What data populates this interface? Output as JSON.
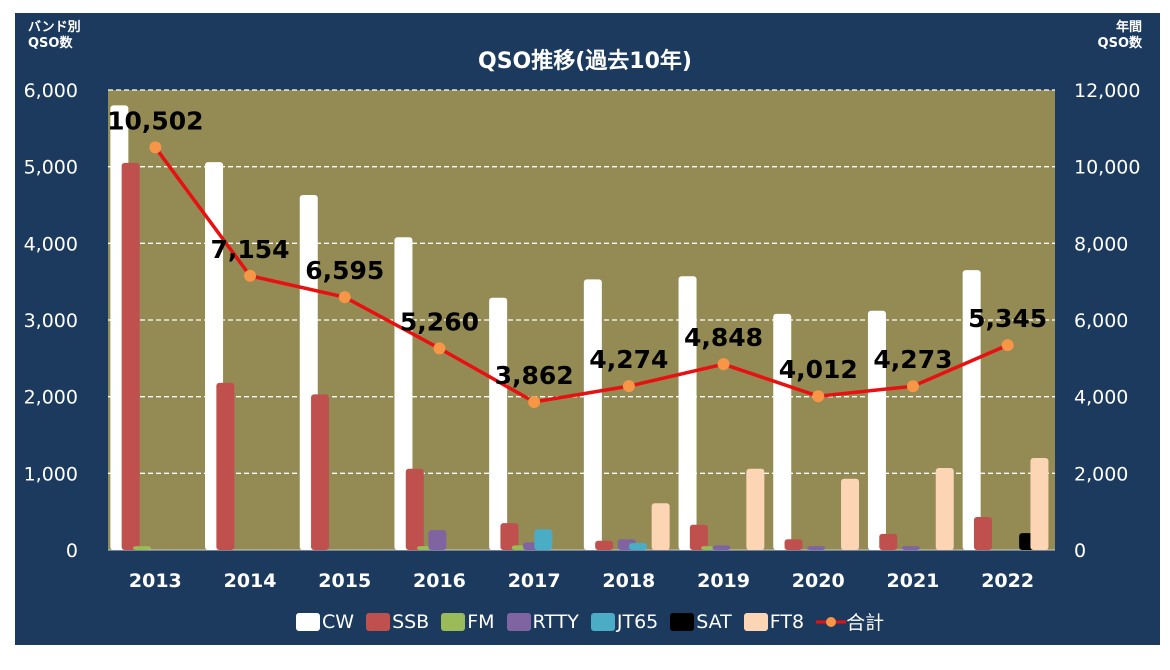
{
  "chart_data": {
    "type": "bar",
    "title": "QSO推移(過去10年)",
    "ylabel_left": "バンド別\nQSO数",
    "ylabel_right": "年間\nQSO数",
    "categories": [
      "2013",
      "2014",
      "2015",
      "2016",
      "2017",
      "2018",
      "2019",
      "2020",
      "2021",
      "2022"
    ],
    "ylim_left": [
      0,
      6000
    ],
    "ylim_right": [
      0,
      12000
    ],
    "yticks_left": [
      "0",
      "1,000",
      "2,000",
      "3,000",
      "4,000",
      "5,000",
      "6,000"
    ],
    "yticks_right": [
      "0",
      "2,000",
      "4,000",
      "6,000",
      "8,000",
      "10,000",
      "12,000"
    ],
    "grid": true,
    "legend_position": "bottom",
    "series": [
      {
        "name": "CW",
        "color": "#ffffff",
        "axis": "left",
        "values": [
          5800,
          5060,
          4630,
          4080,
          3290,
          3530,
          3570,
          3080,
          3120,
          3650
        ]
      },
      {
        "name": "SSB",
        "color": "#c0504d",
        "axis": "left",
        "values": [
          5050,
          2180,
          2030,
          1060,
          350,
          120,
          330,
          140,
          210,
          430
        ]
      },
      {
        "name": "FM",
        "color": "#9bbb59",
        "axis": "left",
        "values": [
          50,
          0,
          0,
          50,
          60,
          0,
          50,
          0,
          0,
          0
        ]
      },
      {
        "name": "RTTY",
        "color": "#8064a2",
        "axis": "left",
        "values": [
          0,
          0,
          0,
          260,
          100,
          140,
          60,
          50,
          50,
          0
        ]
      },
      {
        "name": "JT65",
        "color": "#4bacc6",
        "axis": "left",
        "values": [
          0,
          0,
          0,
          0,
          270,
          90,
          0,
          0,
          0,
          0
        ]
      },
      {
        "name": "SAT",
        "color": "#000000",
        "axis": "left",
        "values": [
          0,
          0,
          0,
          0,
          0,
          0,
          0,
          0,
          0,
          220
        ]
      },
      {
        "name": "FT8",
        "color": "#fcd5b5",
        "axis": "left",
        "values": [
          0,
          0,
          0,
          0,
          0,
          610,
          1060,
          930,
          1070,
          1200
        ]
      }
    ],
    "line": {
      "name": "合計",
      "color": "#e81010",
      "marker_color": "#f79646",
      "axis": "right",
      "values": [
        10502,
        7154,
        6595,
        5260,
        3862,
        4274,
        4848,
        4012,
        4273,
        5345
      ],
      "labels": [
        "10,502",
        "7,154",
        "6,595",
        "5,260",
        "3,862",
        "4,274",
        "4,848",
        "4,012",
        "4,273",
        "5,345"
      ]
    },
    "plot_background": "#948a54",
    "background": "#1b3a5e"
  }
}
